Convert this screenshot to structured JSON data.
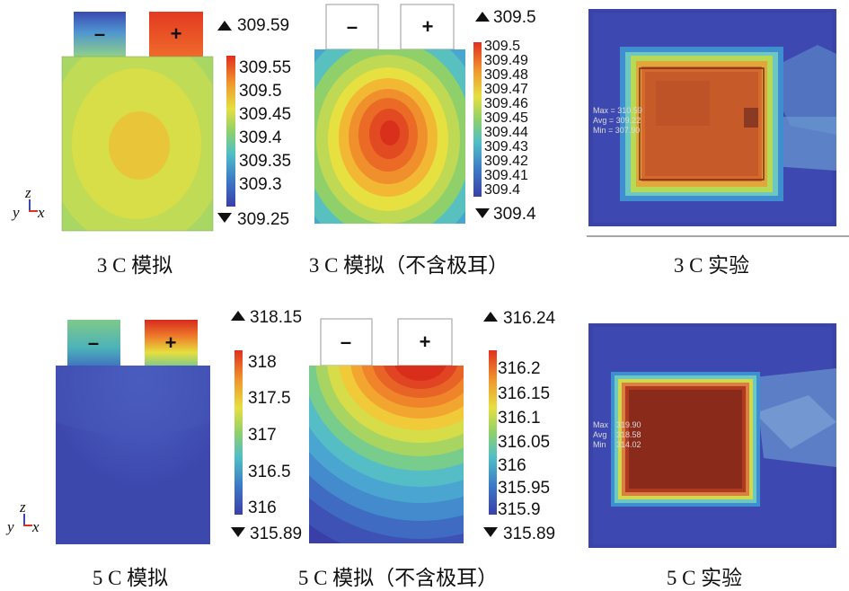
{
  "captions": {
    "p1": "3 C 模拟",
    "p2": "3 C 模拟（不含极耳）",
    "p3": "3 C 实验",
    "p4": "5 C 模拟",
    "p5": "5 C 模拟（不含极耳）",
    "p6": "5 C 实验"
  },
  "terminals": {
    "neg": "–",
    "pos": "+"
  },
  "axis": {
    "z": "z",
    "y": "y",
    "x": "x"
  },
  "scale1": {
    "max": "309.59",
    "min": "309.25",
    "ticks": [
      "309.55",
      "309.5",
      "309.45",
      "309.4",
      "309.35",
      "309.3"
    ]
  },
  "scale2": {
    "max": "309.5",
    "min": "309.4",
    "ticks": [
      "309.5",
      "309.49",
      "309.48",
      "309.47",
      "309.46",
      "309.45",
      "309.44",
      "309.43",
      "309.42",
      "309.41",
      "309.4"
    ]
  },
  "scale3": {
    "max": "318.15",
    "min": "315.89",
    "ticks": [
      "318",
      "317.5",
      "317",
      "316.5",
      "316"
    ]
  },
  "scale4": {
    "max": "316.24",
    "min": "315.89",
    "ticks": [
      "316.2",
      "316.15",
      "316.1",
      "316.05",
      "316",
      "315.95",
      "315.9"
    ]
  },
  "thermo1": {
    "max": "Max = 310.59",
    "avg": "Avg = 309.22",
    "min": "Min = 307.90"
  },
  "thermo2": {
    "max": "Max",
    "maxv": "319.90",
    "avg": "Avg",
    "avgv": "318.58",
    "min": "Min",
    "minv": "314.02"
  },
  "colors": {
    "red": "#e0301e",
    "blue": "#3b4aa8",
    "yellow": "#e8e040",
    "bg": "#ffffff"
  }
}
